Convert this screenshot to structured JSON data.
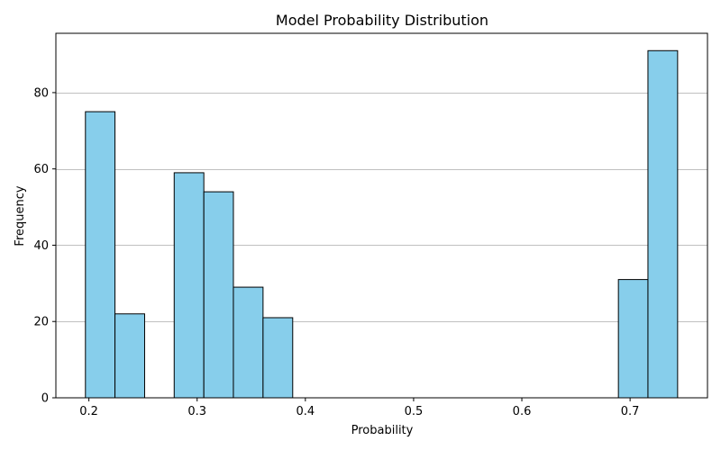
{
  "chart_data": {
    "type": "bar",
    "title": "Model Probability Distribution",
    "xlabel": "Probability",
    "ylabel": "Frequency",
    "xlim": [
      0.1695,
      0.7715
    ],
    "ylim": [
      0,
      95.55
    ],
    "xticks": [
      0.2,
      0.3,
      0.4,
      0.5,
      0.6,
      0.7
    ],
    "xtick_labels": [
      "0.2",
      "0.3",
      "0.4",
      "0.5",
      "0.6",
      "0.7"
    ],
    "yticks": [
      0,
      20,
      40,
      60,
      80
    ],
    "ytick_labels": [
      "0",
      "20",
      "40",
      "60",
      "80"
    ],
    "grid": "y-major",
    "bin_edges": [
      0.1968,
      0.2241,
      0.2515,
      0.2788,
      0.3062,
      0.3335,
      0.3609,
      0.3883,
      0.4156,
      0.443,
      0.4703,
      0.4977,
      0.525,
      0.5524,
      0.5797,
      0.6071,
      0.6345,
      0.6618,
      0.6892,
      0.7165,
      0.7439
    ],
    "values": [
      75,
      22,
      0,
      59,
      54,
      29,
      21,
      0,
      0,
      0,
      0,
      0,
      0,
      0,
      0,
      0,
      0,
      0,
      31,
      91
    ],
    "bar_color": "#87CEEB",
    "edge_color": "#000000",
    "grid_color": "#c0c0c0"
  }
}
